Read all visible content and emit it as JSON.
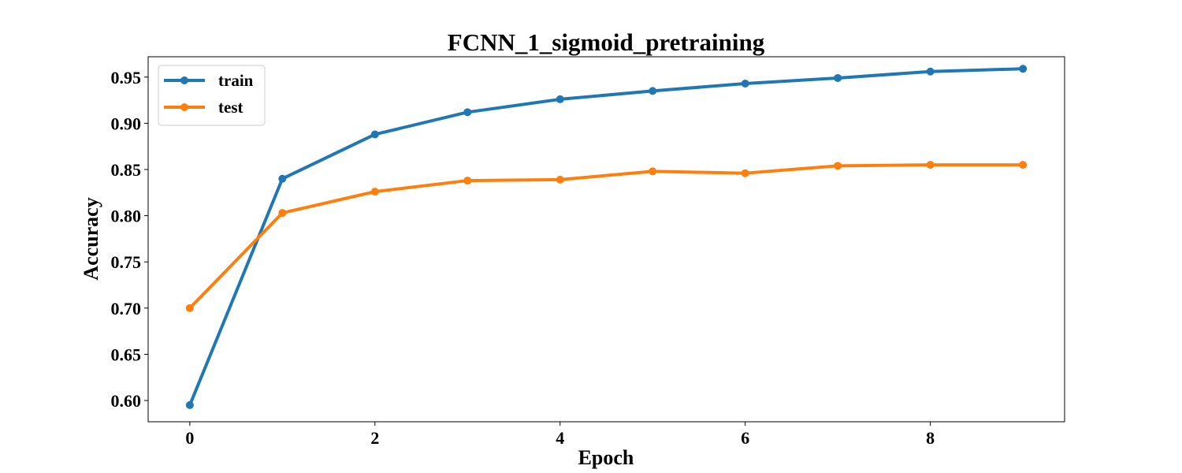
{
  "chart_data": {
    "type": "line",
    "title": "FCNN_1_sigmoid_pretraining",
    "xlabel": "Epoch",
    "ylabel": "Accuracy",
    "x": [
      0,
      1,
      2,
      3,
      4,
      5,
      6,
      7,
      8,
      9
    ],
    "xlim": [
      -0.45,
      9.45
    ],
    "ylim": [
      0.577,
      0.972
    ],
    "xticks": [
      0,
      2,
      4,
      6,
      8
    ],
    "xtick_labels": [
      "0",
      "2",
      "4",
      "6",
      "8"
    ],
    "yticks": [
      0.6,
      0.65,
      0.7,
      0.75,
      0.8,
      0.85,
      0.9,
      0.95
    ],
    "ytick_labels": [
      "0.60",
      "0.65",
      "0.70",
      "0.75",
      "0.80",
      "0.85",
      "0.90",
      "0.95"
    ],
    "grid": false,
    "legend_position": "top-left",
    "series": [
      {
        "name": "train",
        "color": "#1f77b4",
        "values": [
          0.595,
          0.84,
          0.888,
          0.912,
          0.926,
          0.935,
          0.943,
          0.949,
          0.956,
          0.959
        ]
      },
      {
        "name": "test",
        "color": "#ff7f0e",
        "values": [
          0.7,
          0.803,
          0.826,
          0.838,
          0.839,
          0.848,
          0.846,
          0.854,
          0.855,
          0.855
        ]
      }
    ]
  }
}
